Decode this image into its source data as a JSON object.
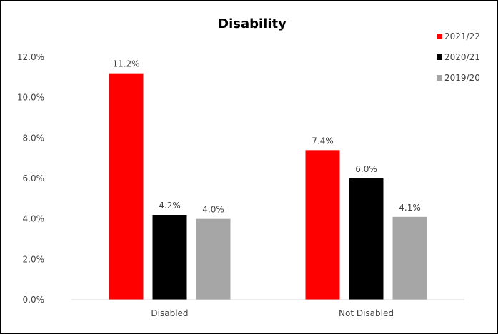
{
  "chart_data": {
    "type": "bar",
    "title": "Disability",
    "xlabel": "",
    "ylabel": "",
    "categories": [
      "Disabled",
      "Not Disabled"
    ],
    "series": [
      {
        "name": "2021/22",
        "color": "#ff0000",
        "values": [
          11.2,
          7.4
        ],
        "labels": [
          "11.2%",
          "7.4%"
        ]
      },
      {
        "name": "2020/21",
        "color": "#000000",
        "values": [
          4.2,
          6.0
        ],
        "labels": [
          "4.2%",
          "6.0%"
        ]
      },
      {
        "name": "2019/20",
        "color": "#a6a6a6",
        "values": [
          4.0,
          4.1
        ],
        "labels": [
          "4.0%",
          "4.1%"
        ]
      }
    ],
    "ylim": [
      0,
      12
    ],
    "yticks": [
      0,
      2,
      4,
      6,
      8,
      10,
      12
    ],
    "ytick_labels": [
      "0.0%",
      "2.0%",
      "4.0%",
      "6.0%",
      "8.0%",
      "10.0%",
      "12.0%"
    ],
    "grid": false,
    "legend_position": "top-right"
  }
}
